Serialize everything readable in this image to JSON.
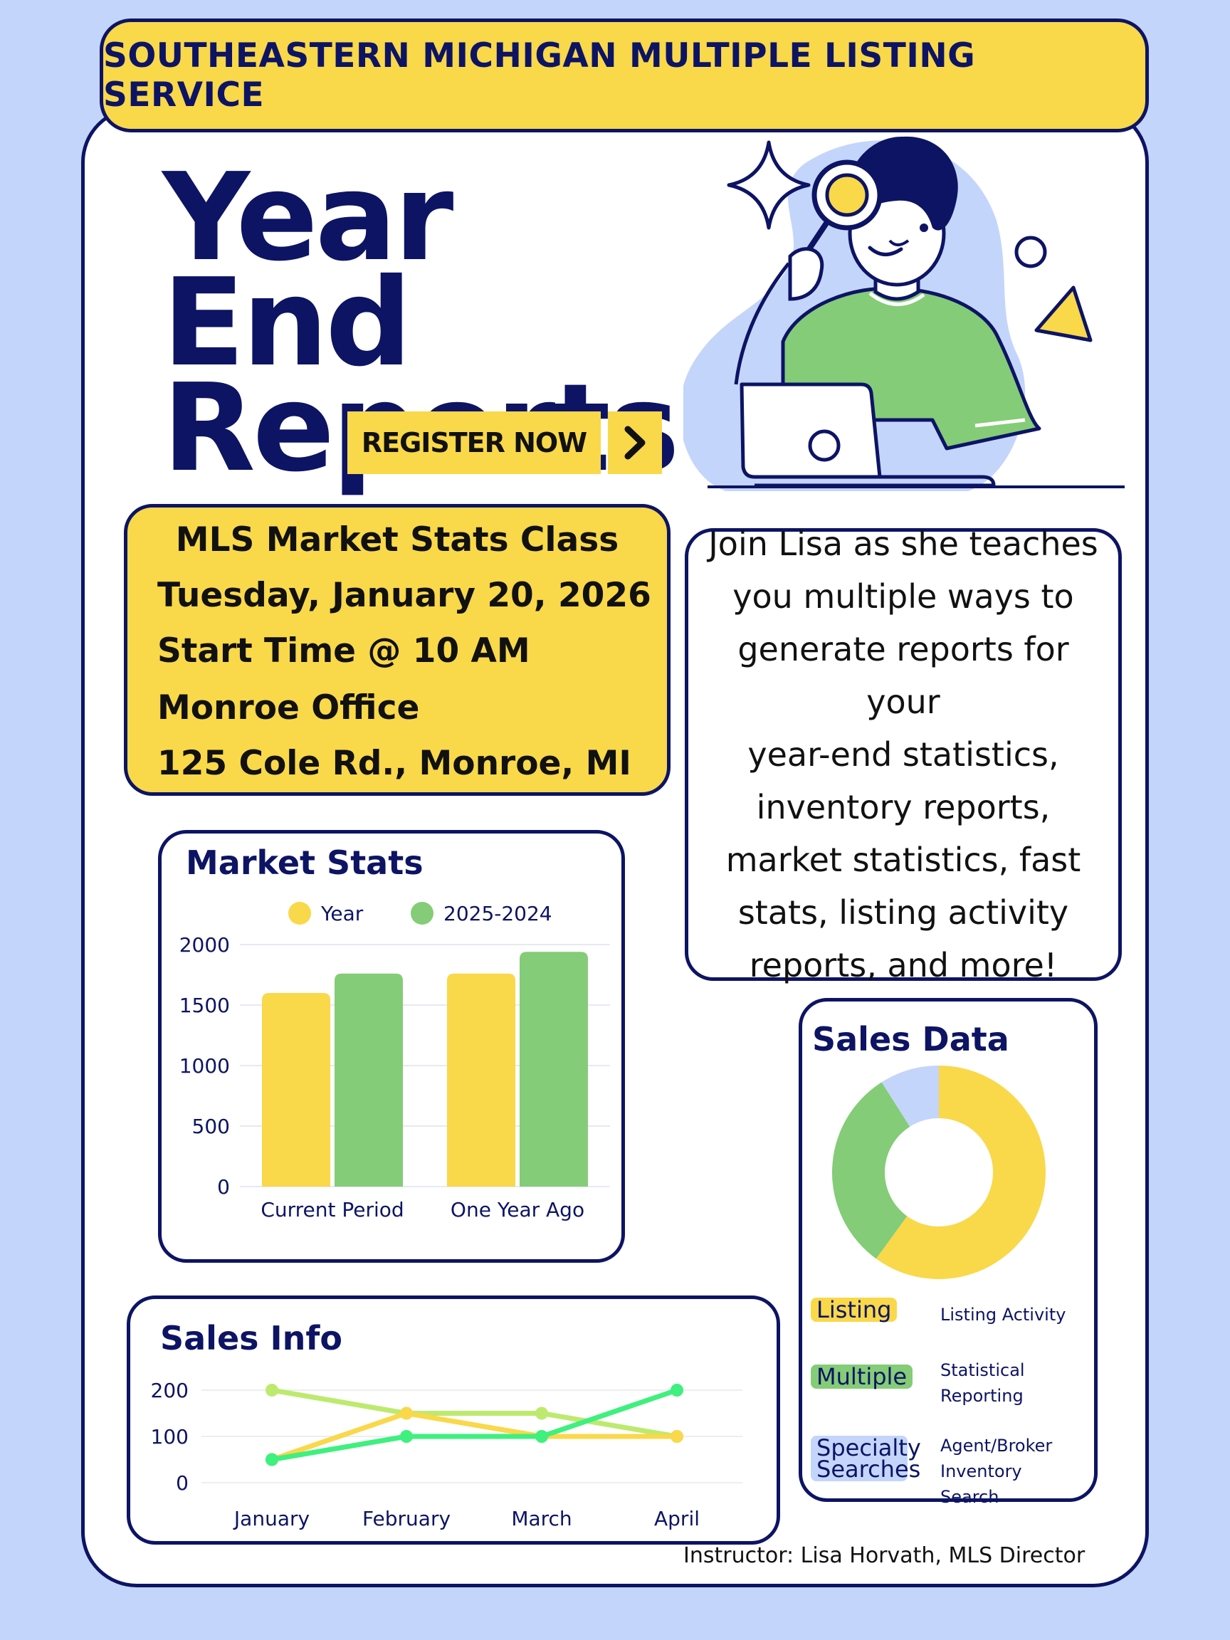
{
  "banner": {
    "text": "SOUTHEASTERN MICHIGAN MULTIPLE LISTING SERVICE"
  },
  "title": {
    "line1": "Year End",
    "line2": "Reports"
  },
  "register": {
    "label": "REGISTER NOW",
    "arrow_icon": "chevron-right-icon"
  },
  "class_info": {
    "title": "MLS Market Stats Class",
    "date": "Tuesday, January 20, 2026",
    "time": "Start Time @ 10 AM",
    "office": "Monroe Office",
    "address": "125 Cole Rd., Monroe, MI"
  },
  "description": {
    "lines": [
      "Join Lisa as she teaches",
      "you multiple ways to",
      "generate reports for your",
      "year-end statistics,",
      "inventory reports,",
      "market statistics, fast",
      "stats, listing activity",
      "reports, and more!"
    ]
  },
  "instructor": "Instructor: Lisa Horvath, MLS Director",
  "colors": {
    "navy": "#0d1464",
    "yellow": "#f9d84a",
    "green": "#84cc77",
    "light_blue": "#c4d5fb",
    "line_green": "#3ef07d",
    "line_lime": "#bdea6e"
  },
  "chart_data": [
    {
      "type": "bar",
      "title": "Market Stats",
      "categories": [
        "Current Period",
        "One Year Ago"
      ],
      "series": [
        {
          "name": "Year",
          "values": [
            1600,
            1760
          ],
          "color": "#f9d84a"
        },
        {
          "name": "2025-2024",
          "values": [
            1760,
            1940
          ],
          "color": "#84cc77"
        }
      ],
      "yticks": [
        0,
        500,
        1000,
        1500,
        2000
      ],
      "ylim": [
        0,
        2000
      ],
      "legend": "top",
      "grid": true
    },
    {
      "type": "line",
      "title": "Sales Info",
      "categories": [
        "January",
        "February",
        "March",
        "April"
      ],
      "series": [
        {
          "values": [
            200,
            150,
            150,
            100
          ],
          "color": "#bdea6e"
        },
        {
          "values": [
            50,
            150,
            100,
            100
          ],
          "color": "#f9d84a"
        },
        {
          "values": [
            50,
            100,
            100,
            200
          ],
          "color": "#3ef07d"
        }
      ],
      "yticks": [
        0,
        100,
        200
      ],
      "ylim": [
        0,
        200
      ],
      "grid": true
    },
    {
      "type": "pie",
      "title": "Sales Data",
      "slices": [
        {
          "label": "Listing",
          "value": 60,
          "color": "#f9d84a",
          "description": "Listing Activity"
        },
        {
          "label": "Multiple",
          "value": 31,
          "color": "#84cc77",
          "description": "Statistical Reporting"
        },
        {
          "label": "Specialty Searches",
          "value": 9,
          "color": "#c4d5fb",
          "description": "Agent/Broker Inventory Search"
        }
      ]
    }
  ]
}
